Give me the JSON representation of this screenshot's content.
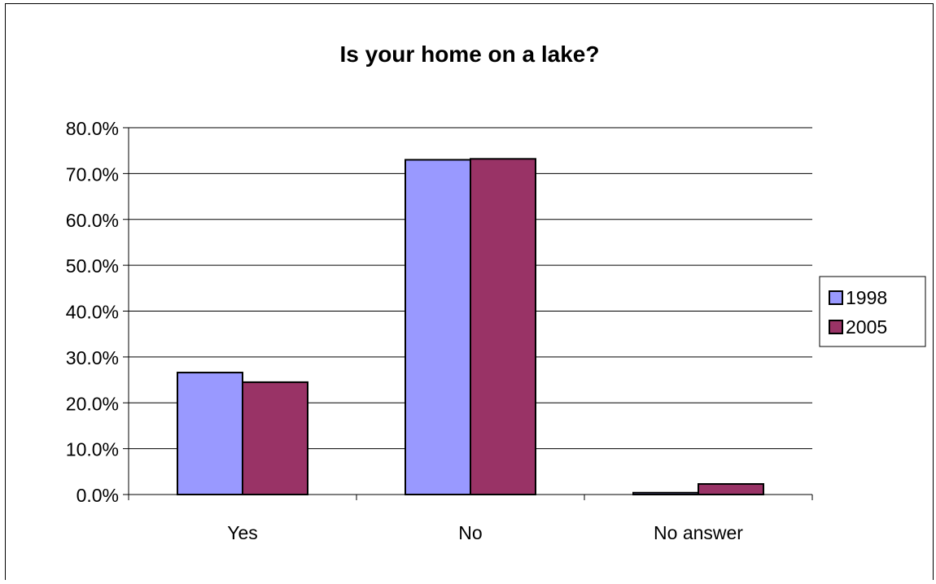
{
  "chart_data": {
    "type": "bar",
    "title": "Is your home on a lake?",
    "xlabel": "",
    "ylabel": "",
    "categories": [
      "Yes",
      "No",
      "No answer"
    ],
    "series": [
      {
        "name": "1998",
        "values": [
          26.6,
          73.0,
          0.4
        ],
        "color": "#9999ff"
      },
      {
        "name": "2005",
        "values": [
          24.5,
          73.2,
          2.3
        ],
        "color": "#993366"
      }
    ],
    "ylim": [
      0,
      80
    ],
    "yticks": [
      0,
      10,
      20,
      30,
      40,
      50,
      60,
      70,
      80
    ],
    "ytick_labels": [
      "0.0%",
      "10.0%",
      "20.0%",
      "30.0%",
      "40.0%",
      "50.0%",
      "60.0%",
      "70.0%",
      "80.0%"
    ],
    "grid": true,
    "legend_position": "right"
  }
}
